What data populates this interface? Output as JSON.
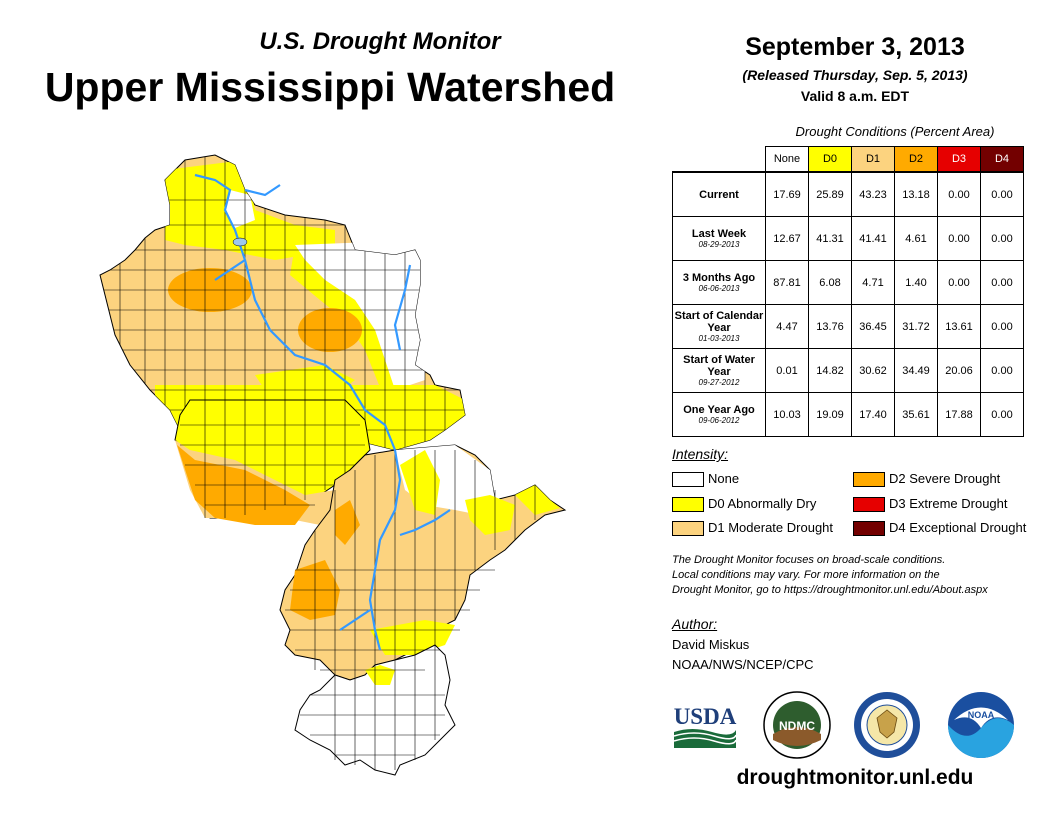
{
  "header": {
    "product": "U.S. Drought Monitor",
    "region": "Upper Mississippi Watershed"
  },
  "release": {
    "date": "September 3, 2013",
    "released": "(Released Thursday, Sep. 5, 2013)",
    "valid": "Valid 8 a.m. EDT"
  },
  "table": {
    "caption": "Drought Conditions (Percent Area)",
    "columns": [
      {
        "label": "None",
        "color": "#ffffff",
        "text": "#000000"
      },
      {
        "label": "D0",
        "color": "#ffff00",
        "text": "#000000"
      },
      {
        "label": "D1",
        "color": "#fcd37f",
        "text": "#000000"
      },
      {
        "label": "D2",
        "color": "#ffaa00",
        "text": "#000000"
      },
      {
        "label": "D3",
        "color": "#e60000",
        "text": "#ffffff"
      },
      {
        "label": "D4",
        "color": "#730000",
        "text": "#ffffff"
      }
    ],
    "rows": [
      {
        "label": "Current",
        "sub": "",
        "values": [
          "17.69",
          "25.89",
          "43.23",
          "13.18",
          "0.00",
          "0.00"
        ]
      },
      {
        "label": "Last Week",
        "sub": "08-29-2013",
        "values": [
          "12.67",
          "41.31",
          "41.41",
          "4.61",
          "0.00",
          "0.00"
        ]
      },
      {
        "label": "3 Months Ago",
        "sub": "06-06-2013",
        "values": [
          "87.81",
          "6.08",
          "4.71",
          "1.40",
          "0.00",
          "0.00"
        ]
      },
      {
        "label": "Start of Calendar Year",
        "sub": "01-03-2013",
        "values": [
          "4.47",
          "13.76",
          "36.45",
          "31.72",
          "13.61",
          "0.00"
        ]
      },
      {
        "label": "Start of Water Year",
        "sub": "09-27-2012",
        "values": [
          "0.01",
          "14.82",
          "30.62",
          "34.49",
          "20.06",
          "0.00"
        ]
      },
      {
        "label": "One Year Ago",
        "sub": "09-06-2012",
        "values": [
          "10.03",
          "19.09",
          "17.40",
          "35.61",
          "17.88",
          "0.00"
        ]
      }
    ]
  },
  "legend": {
    "title": "Intensity:",
    "items": [
      {
        "label": "None",
        "color": "#ffffff"
      },
      {
        "label": "D0 Abnormally Dry",
        "color": "#ffff00"
      },
      {
        "label": "D1 Moderate Drought",
        "color": "#fcd37f"
      },
      {
        "label": "D2 Severe Drought",
        "color": "#ffaa00"
      },
      {
        "label": "D3 Extreme Drought",
        "color": "#e60000"
      },
      {
        "label": "D4 Exceptional Drought",
        "color": "#730000"
      }
    ]
  },
  "note": {
    "line1": "The Drought Monitor focuses on broad-scale conditions.",
    "line2": "Local conditions may vary. For more information on the",
    "line3": "Drought Monitor, go to https://droughtmonitor.unl.edu/About.aspx"
  },
  "author": {
    "label": "Author:",
    "name": "David Miskus",
    "org": "NOAA/NWS/NCEP/CPC"
  },
  "logos": {
    "usda": "USDA",
    "ndmc": "NDMC",
    "noaa": "NOAA"
  },
  "footer": {
    "url": "droughtmonitor.unl.edu"
  },
  "colors": {
    "river": "#3399ff",
    "county_line": "#000000"
  }
}
